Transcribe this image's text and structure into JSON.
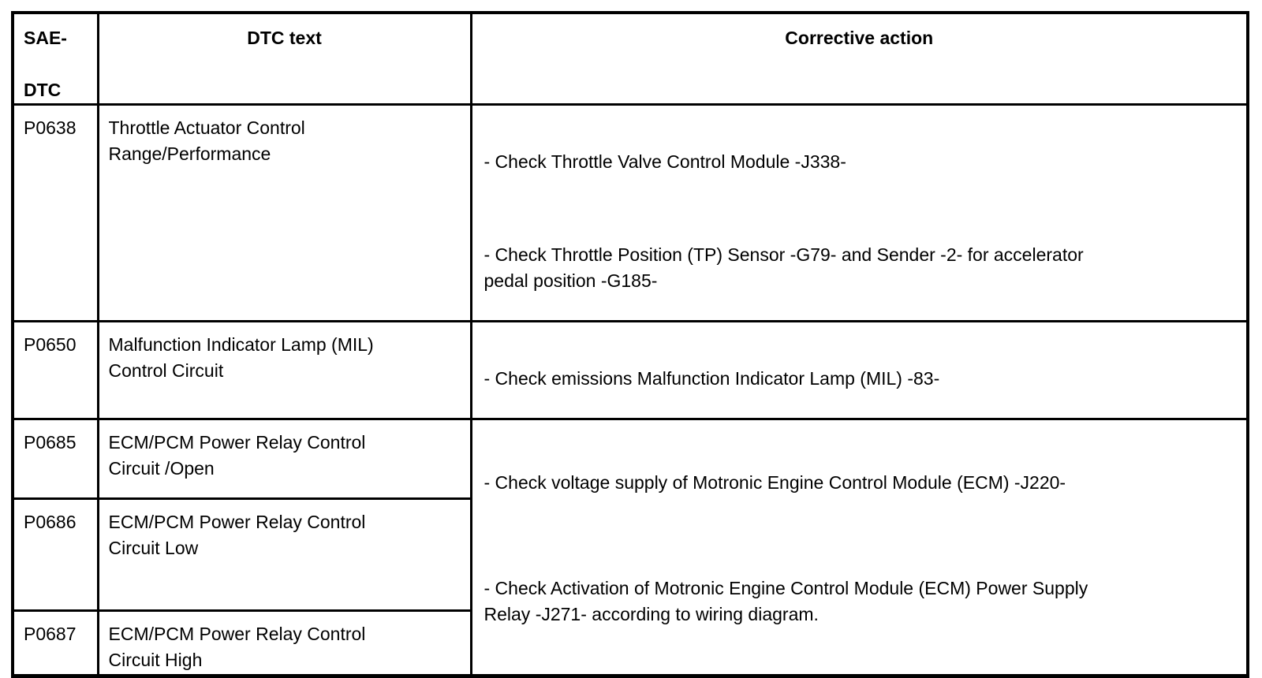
{
  "colors": {
    "background": "#ffffff",
    "border": "#000000",
    "text": "#000000"
  },
  "table": {
    "header": {
      "code_column": "SAE-\n\nDTC",
      "dtc_text": "DTC text",
      "corrective_action": "Corrective action"
    },
    "rows": [
      {
        "code": "P0638",
        "dtc_text": "Throttle Actuator Control\nRange/Performance",
        "actions": [
          "- Check Throttle Valve Control Module -J338-",
          "- Check Throttle Position (TP) Sensor -G79- and Sender -2- for accelerator\npedal position -G185-"
        ]
      },
      {
        "code": "P0650",
        "dtc_text": "Malfunction Indicator Lamp (MIL)\nControl Circuit",
        "actions": [
          "- Check emissions Malfunction Indicator Lamp (MIL) -83-"
        ]
      },
      {
        "code": "P0685",
        "dtc_text": "ECM/PCM Power Relay Control\nCircuit /Open"
      },
      {
        "code": "P0686",
        "dtc_text": "ECM/PCM Power Relay Control\nCircuit Low"
      },
      {
        "code": "P0687",
        "dtc_text": "ECM/PCM Power Relay Control\nCircuit High"
      }
    ],
    "merged_action": {
      "actions": [
        "- Check voltage supply of Motronic Engine Control Module (ECM) -J220-",
        "- Check Activation of Motronic Engine Control Module (ECM) Power Supply\nRelay -J271- according to wiring diagram."
      ]
    }
  }
}
